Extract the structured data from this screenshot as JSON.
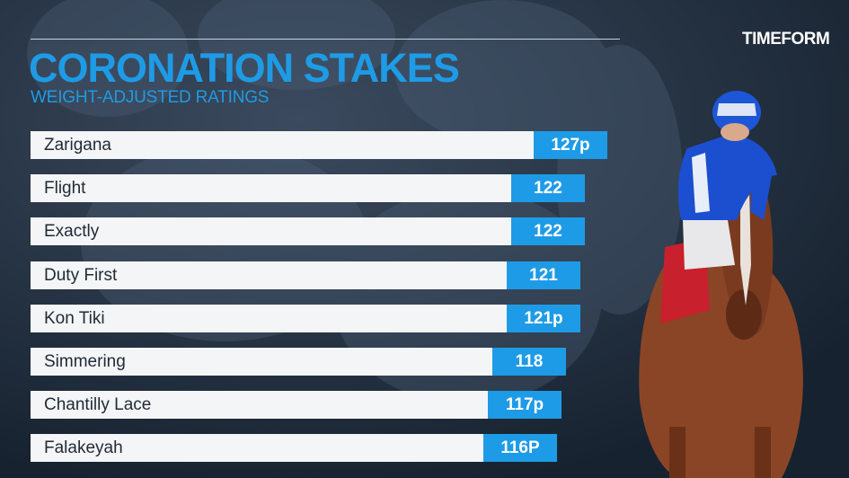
{
  "header": {
    "title": "CORONATION STAKES",
    "subtitle": "WEIGHT-ADJUSTED RATINGS",
    "logo_text": "TIMEFORM"
  },
  "colors": {
    "accent": "#1e9be6",
    "bar_background": "#f4f5f6",
    "page_background": "#1c2a3b",
    "text_dark": "#1f2a36"
  },
  "chart_data": {
    "type": "bar",
    "orientation": "horizontal",
    "title": "CORONATION STAKES",
    "subtitle": "WEIGHT-ADJUSTED RATINGS",
    "categories": [
      "Zarigana",
      "Flight",
      "Exactly",
      "Duty First",
      "Kon Tiki",
      "Simmering",
      "Chantilly Lace",
      "Falakeyah"
    ],
    "values": [
      127,
      122,
      122,
      121,
      121,
      118,
      117,
      116
    ],
    "labels": [
      "127p",
      "122",
      "122",
      "121",
      "121p",
      "118",
      "117p",
      "116P"
    ],
    "xlabel": "",
    "ylabel": "",
    "grid": false,
    "legend": "none"
  }
}
